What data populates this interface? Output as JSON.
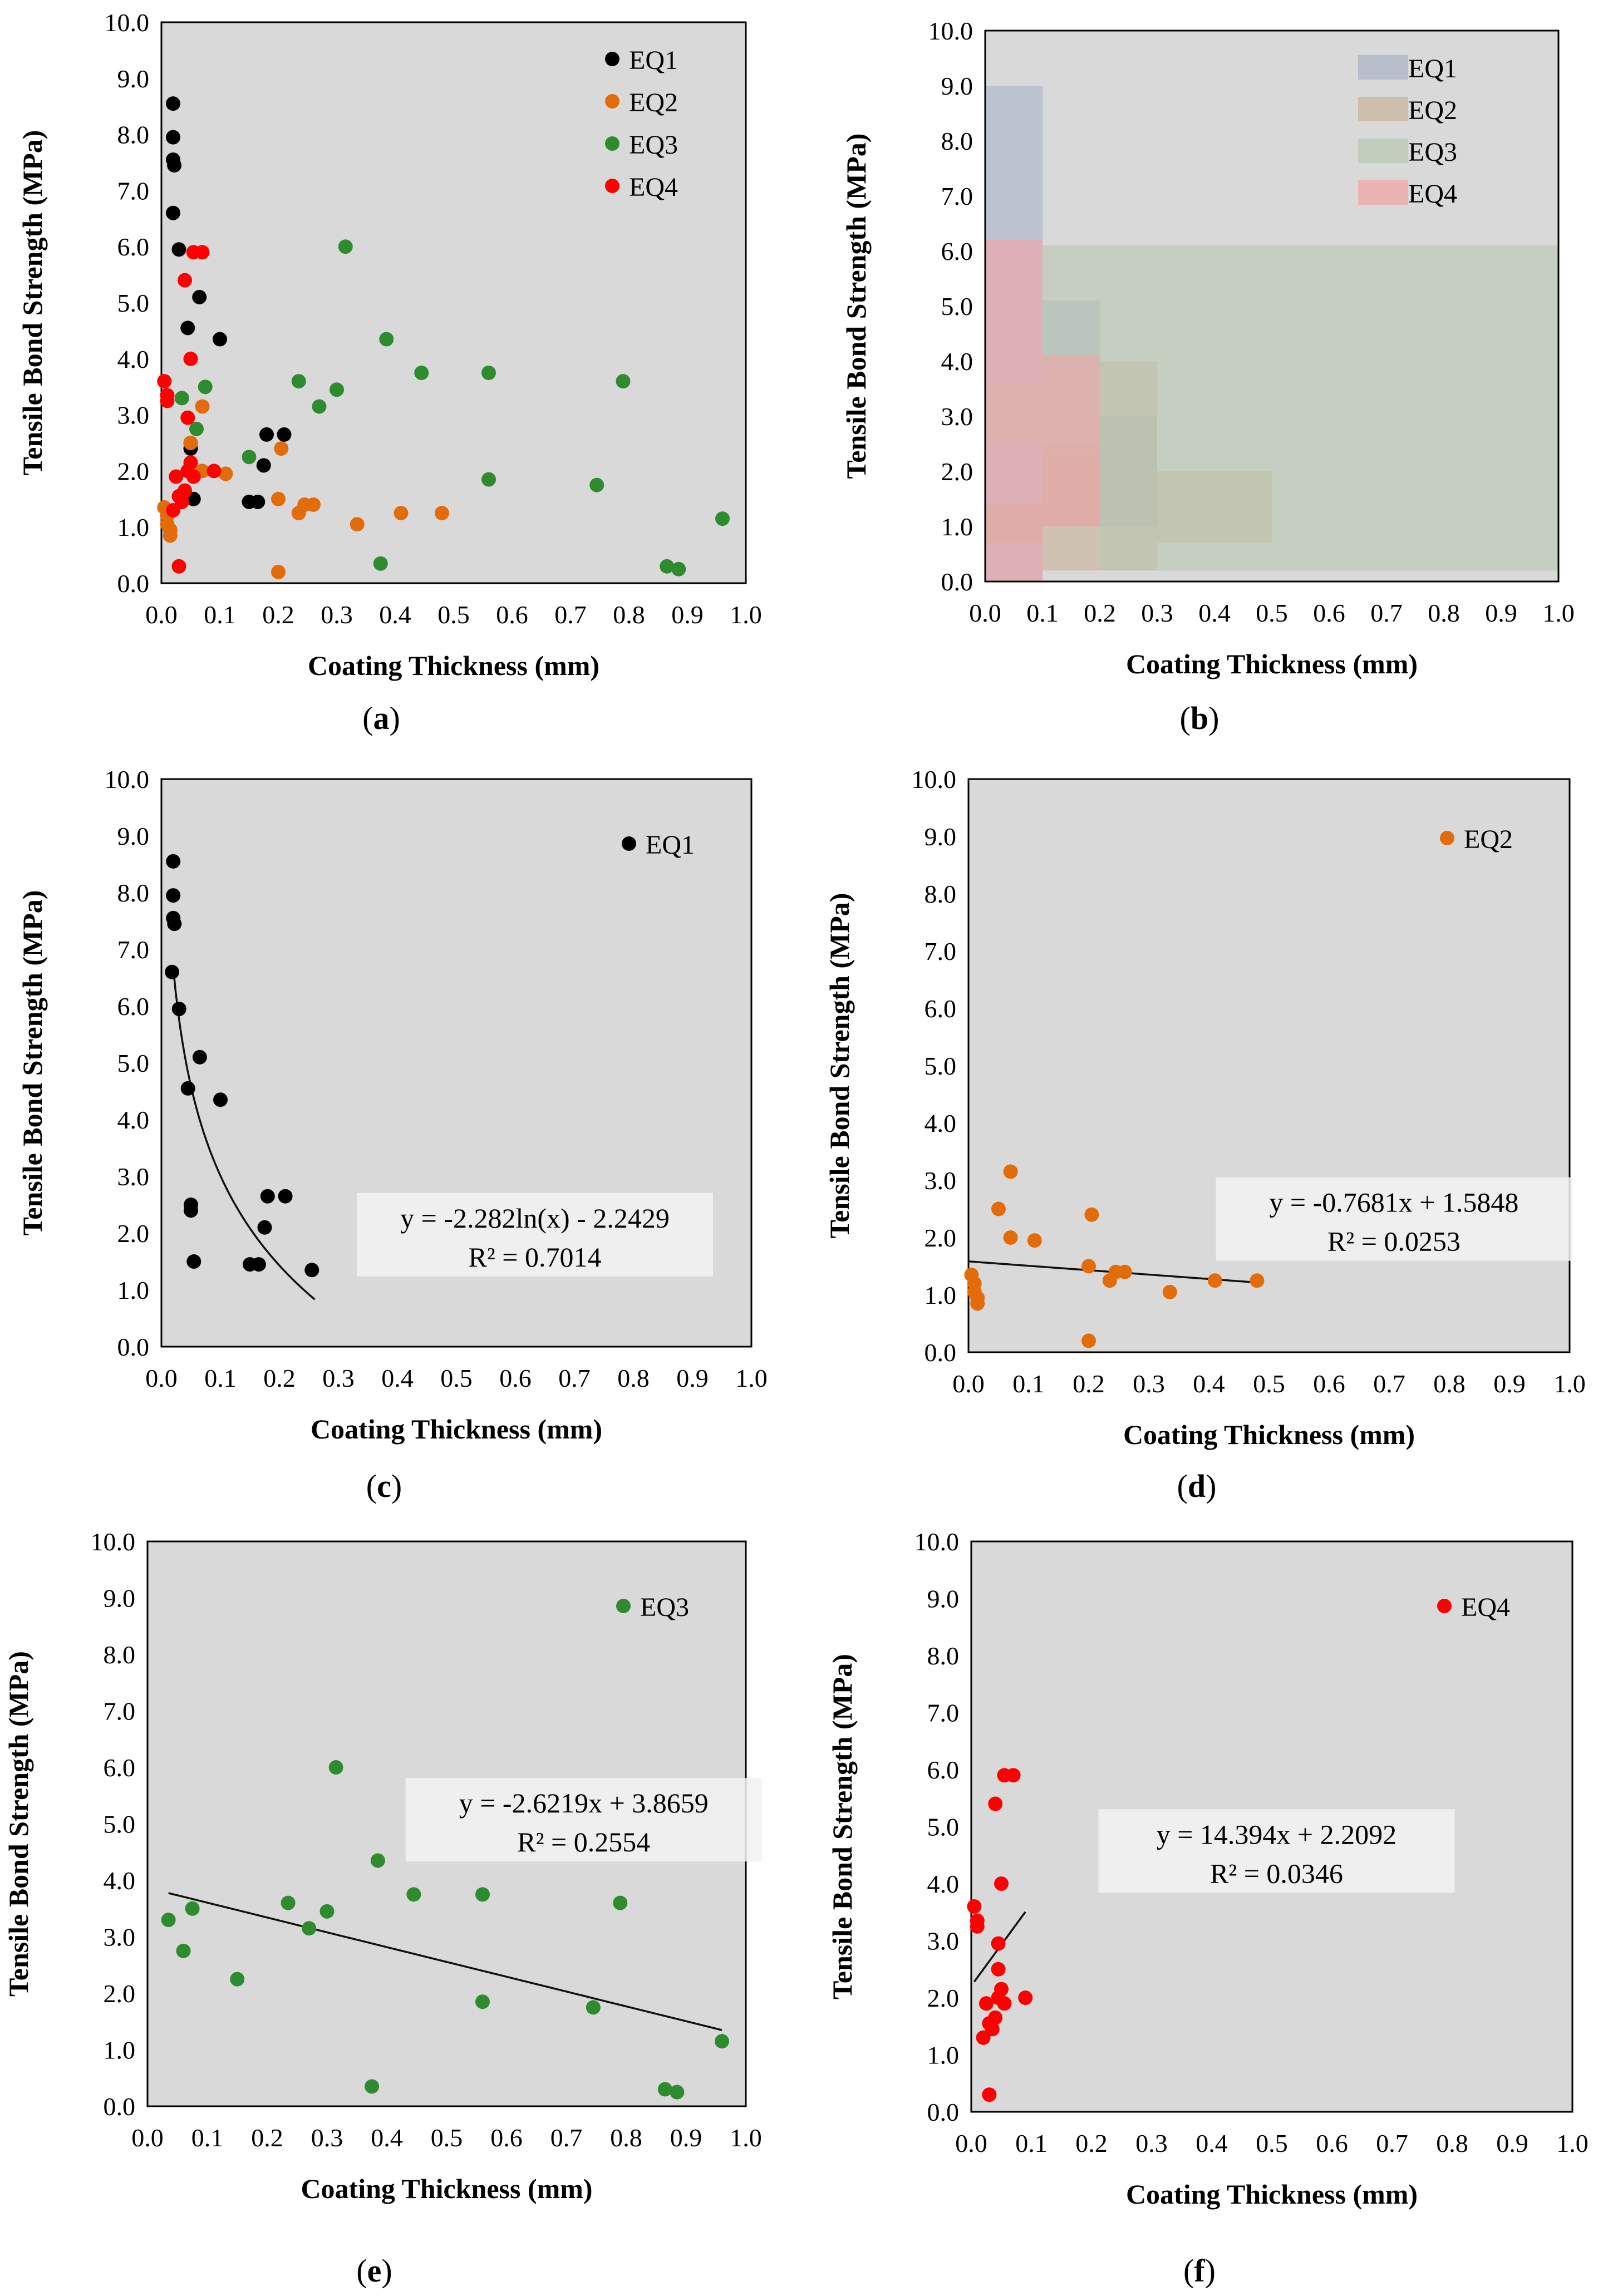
{
  "colors": {
    "EQ1": "#000000",
    "EQ2": "#e36c0a",
    "EQ3": "#2e8b2e",
    "EQ4": "#ff0000",
    "plot_bg": "#d9d9d9",
    "area_EQ1": "#a8b4c8",
    "area_EQ2": "#c9b39a",
    "area_EQ3": "#b8c6b0",
    "area_EQ4": "#f4a3a3"
  },
  "chart_data": [
    {
      "id": "a",
      "type": "scatter",
      "panel_label": "a",
      "xlabel": "Coating Thickness (mm)",
      "ylabel": "Tensile Bond Strength (MPa)",
      "xlim": [
        0,
        1
      ],
      "ylim": [
        0,
        10
      ],
      "xticks": [
        "0.0",
        "0.1",
        "0.2",
        "0.3",
        "0.4",
        "0.5",
        "0.6",
        "0.7",
        "0.8",
        "0.9",
        "1.0"
      ],
      "yticks": [
        "0.0",
        "1.0",
        "2.0",
        "3.0",
        "4.0",
        "5.0",
        "6.0",
        "7.0",
        "8.0",
        "9.0",
        "10.0"
      ],
      "legend": [
        "EQ1",
        "EQ2",
        "EQ3",
        "EQ4"
      ],
      "legend_position": "top-right",
      "series": [
        {
          "name": "EQ1",
          "color_key": "EQ1",
          "points": [
            [
              0.02,
              8.55
            ],
            [
              0.02,
              7.95
            ],
            [
              0.02,
              7.55
            ],
            [
              0.022,
              7.45
            ],
            [
              0.02,
              6.6
            ],
            [
              0.03,
              5.95
            ],
            [
              0.065,
              5.1
            ],
            [
              0.045,
              4.55
            ],
            [
              0.1,
              4.35
            ],
            [
              0.05,
              2.5
            ],
            [
              0.05,
              2.4
            ],
            [
              0.055,
              1.5
            ],
            [
              0.15,
              1.45
            ],
            [
              0.165,
              1.45
            ],
            [
              0.175,
              2.1
            ],
            [
              0.18,
              2.65
            ],
            [
              0.21,
              2.65
            ]
          ]
        },
        {
          "name": "EQ2",
          "color_key": "EQ2",
          "points": [
            [
              0.005,
              1.35
            ],
            [
              0.01,
              1.2
            ],
            [
              0.01,
              1.05
            ],
            [
              0.015,
              0.95
            ],
            [
              0.015,
              0.85
            ],
            [
              0.05,
              2.5
            ],
            [
              0.07,
              3.15
            ],
            [
              0.07,
              2.0
            ],
            [
              0.11,
              1.95
            ],
            [
              0.2,
              0.2
            ],
            [
              0.2,
              1.5
            ],
            [
              0.205,
              2.4
            ],
            [
              0.235,
              1.25
            ],
            [
              0.245,
              1.4
            ],
            [
              0.26,
              1.4
            ],
            [
              0.335,
              1.05
            ],
            [
              0.41,
              1.25
            ],
            [
              0.48,
              1.25
            ]
          ]
        },
        {
          "name": "EQ3",
          "color_key": "EQ3",
          "points": [
            [
              0.035,
              3.3
            ],
            [
              0.06,
              2.75
            ],
            [
              0.075,
              3.5
            ],
            [
              0.15,
              2.25
            ],
            [
              0.235,
              3.6
            ],
            [
              0.27,
              3.15
            ],
            [
              0.3,
              3.45
            ],
            [
              0.315,
              6.0
            ],
            [
              0.375,
              0.35
            ],
            [
              0.385,
              4.35
            ],
            [
              0.445,
              3.75
            ],
            [
              0.56,
              3.75
            ],
            [
              0.56,
              1.85
            ],
            [
              0.745,
              1.75
            ],
            [
              0.79,
              3.6
            ],
            [
              0.865,
              0.3
            ],
            [
              0.885,
              0.25
            ],
            [
              0.96,
              1.15
            ]
          ]
        },
        {
          "name": "EQ4",
          "color_key": "EQ4",
          "points": [
            [
              0.005,
              3.6
            ],
            [
              0.01,
              3.35
            ],
            [
              0.01,
              3.25
            ],
            [
              0.02,
              1.3
            ],
            [
              0.025,
              1.9
            ],
            [
              0.03,
              0.3
            ],
            [
              0.03,
              1.55
            ],
            [
              0.035,
              1.45
            ],
            [
              0.04,
              5.4
            ],
            [
              0.04,
              1.65
            ],
            [
              0.045,
              2.0
            ],
            [
              0.045,
              2.95
            ],
            [
              0.05,
              4.0
            ],
            [
              0.05,
              2.15
            ],
            [
              0.055,
              1.9
            ],
            [
              0.055,
              5.9
            ],
            [
              0.07,
              5.9
            ],
            [
              0.09,
              2.0
            ]
          ]
        }
      ]
    },
    {
      "id": "b",
      "type": "area",
      "panel_label": "b",
      "xlabel": "Coating Thickness (mm)",
      "ylabel": "Tensile Bond Strength (MPa)",
      "xlim": [
        0,
        1
      ],
      "ylim": [
        0,
        10
      ],
      "xticks": [
        "0.0",
        "0.1",
        "0.2",
        "0.3",
        "0.4",
        "0.5",
        "0.6",
        "0.7",
        "0.8",
        "0.9",
        "1.0"
      ],
      "yticks": [
        "0.0",
        "1.0",
        "2.0",
        "3.0",
        "4.0",
        "5.0",
        "6.0",
        "7.0",
        "8.0",
        "9.0",
        "10.0"
      ],
      "legend": [
        "EQ1",
        "EQ2",
        "EQ3",
        "EQ4"
      ],
      "legend_position": "top-right",
      "ranges": [
        {
          "name": "EQ1",
          "color_key": "area_EQ1",
          "bands": [
            [
              0.0,
              0.1,
              0.0,
              9.0
            ],
            [
              0.1,
              0.2,
              1.0,
              5.1
            ],
            [
              0.2,
              0.3,
              1.0,
              3.0
            ]
          ]
        },
        {
          "name": "EQ2",
          "color_key": "area_EQ2",
          "bands": [
            [
              0.0,
              0.1,
              0.7,
              1.4
            ],
            [
              0.1,
              0.2,
              0.2,
              2.5
            ],
            [
              0.2,
              0.3,
              0.2,
              4.0
            ],
            [
              0.3,
              0.5,
              0.7,
              2.0
            ]
          ]
        },
        {
          "name": "EQ3",
          "color_key": "area_EQ3",
          "bands": [
            [
              0.0,
              0.1,
              2.5,
              3.6
            ],
            [
              0.1,
              0.2,
              2.2,
              6.1
            ],
            [
              0.2,
              1.0,
              0.2,
              6.1
            ]
          ]
        },
        {
          "name": "EQ4",
          "color_key": "area_EQ4",
          "bands": [
            [
              0.0,
              0.1,
              0.0,
              6.2
            ],
            [
              0.1,
              0.2,
              1.0,
              4.1
            ]
          ]
        }
      ]
    },
    {
      "id": "c",
      "type": "scatter",
      "panel_label": "c",
      "xlabel": "Coating Thickness (mm)",
      "ylabel": "Tensile Bond Strength (MPa)",
      "xlim": [
        0,
        1
      ],
      "ylim": [
        0,
        10
      ],
      "xticks": [
        "0.0",
        "0.1",
        "0.2",
        "0.3",
        "0.4",
        "0.5",
        "0.6",
        "0.7",
        "0.8",
        "0.9",
        "1.0"
      ],
      "yticks": [
        "0.0",
        "1.0",
        "2.0",
        "3.0",
        "4.0",
        "5.0",
        "6.0",
        "7.0",
        "8.0",
        "9.0",
        "10.0"
      ],
      "legend": [
        "EQ1"
      ],
      "legend_position": "top-right",
      "equation": "y = -2.282ln(x) - 2.2429",
      "r_squared": "R² = 0.7014",
      "trend": {
        "kind": "log",
        "a": -2.282,
        "b": -2.2429,
        "x_from": 0.02,
        "x_to": 0.26
      },
      "series": [
        {
          "name": "EQ1",
          "color_key": "EQ1",
          "points": [
            [
              0.02,
              8.55
            ],
            [
              0.02,
              7.95
            ],
            [
              0.02,
              7.55
            ],
            [
              0.022,
              7.45
            ],
            [
              0.018,
              6.6
            ],
            [
              0.03,
              5.95
            ],
            [
              0.065,
              5.1
            ],
            [
              0.045,
              4.55
            ],
            [
              0.1,
              4.35
            ],
            [
              0.05,
              2.5
            ],
            [
              0.05,
              2.4
            ],
            [
              0.055,
              1.5
            ],
            [
              0.15,
              1.45
            ],
            [
              0.165,
              1.45
            ],
            [
              0.175,
              2.1
            ],
            [
              0.18,
              2.65
            ],
            [
              0.21,
              2.65
            ],
            [
              0.255,
              1.35
            ]
          ]
        }
      ]
    },
    {
      "id": "d",
      "type": "scatter",
      "panel_label": "d",
      "xlabel": "Coating Thickness (mm)",
      "ylabel": "Tensile Bond Strength (MPa)",
      "xlim": [
        0,
        1
      ],
      "ylim": [
        0,
        10
      ],
      "xticks": [
        "0.0",
        "0.1",
        "0.2",
        "0.3",
        "0.4",
        "0.5",
        "0.6",
        "0.7",
        "0.8",
        "0.9",
        "1.0"
      ],
      "yticks": [
        "0.0",
        "1.0",
        "2.0",
        "3.0",
        "4.0",
        "5.0",
        "6.0",
        "7.0",
        "8.0",
        "9.0",
        "10.0"
      ],
      "legend": [
        "EQ2"
      ],
      "legend_position": "top-right",
      "equation": "y = -0.7681x + 1.5848",
      "r_squared": "R² = 0.0253",
      "trend": {
        "kind": "linear",
        "m": -0.7681,
        "c": 1.5848,
        "x_from": 0.0,
        "x_to": 0.48
      },
      "series": [
        {
          "name": "EQ2",
          "color_key": "EQ2",
          "points": [
            [
              0.005,
              1.35
            ],
            [
              0.01,
              1.2
            ],
            [
              0.01,
              1.05
            ],
            [
              0.015,
              0.95
            ],
            [
              0.015,
              0.85
            ],
            [
              0.05,
              2.5
            ],
            [
              0.07,
              3.15
            ],
            [
              0.07,
              2.0
            ],
            [
              0.11,
              1.95
            ],
            [
              0.2,
              0.2
            ],
            [
              0.2,
              1.5
            ],
            [
              0.205,
              2.4
            ],
            [
              0.235,
              1.25
            ],
            [
              0.245,
              1.4
            ],
            [
              0.26,
              1.4
            ],
            [
              0.335,
              1.05
            ],
            [
              0.41,
              1.25
            ],
            [
              0.48,
              1.25
            ]
          ]
        }
      ]
    },
    {
      "id": "e",
      "type": "scatter",
      "panel_label": "e",
      "xlabel": "Coating Thickness (mm)",
      "ylabel": "Tensile Bond Strength (MPa)",
      "xlim": [
        0,
        1
      ],
      "ylim": [
        0,
        10
      ],
      "xticks": [
        "0.0",
        "0.1",
        "0.2",
        "0.3",
        "0.4",
        "0.5",
        "0.6",
        "0.7",
        "0.8",
        "0.9",
        "1.0"
      ],
      "yticks": [
        "0.0",
        "1.0",
        "2.0",
        "3.0",
        "4.0",
        "5.0",
        "6.0",
        "7.0",
        "8.0",
        "9.0",
        "10.0"
      ],
      "legend": [
        "EQ3"
      ],
      "legend_position": "top-right",
      "equation": "y = -2.6219x + 3.8659",
      "r_squared": "R² = 0.2554",
      "trend": {
        "kind": "linear",
        "m": -2.6219,
        "c": 3.8659,
        "x_from": 0.035,
        "x_to": 0.96
      },
      "series": [
        {
          "name": "EQ3",
          "color_key": "EQ3",
          "points": [
            [
              0.035,
              3.3
            ],
            [
              0.06,
              2.75
            ],
            [
              0.075,
              3.5
            ],
            [
              0.15,
              2.25
            ],
            [
              0.235,
              3.6
            ],
            [
              0.27,
              3.15
            ],
            [
              0.3,
              3.45
            ],
            [
              0.315,
              6.0
            ],
            [
              0.375,
              0.35
            ],
            [
              0.385,
              4.35
            ],
            [
              0.445,
              3.75
            ],
            [
              0.56,
              3.75
            ],
            [
              0.56,
              1.85
            ],
            [
              0.745,
              1.75
            ],
            [
              0.79,
              3.6
            ],
            [
              0.865,
              0.3
            ],
            [
              0.885,
              0.25
            ],
            [
              0.96,
              1.15
            ]
          ]
        }
      ]
    },
    {
      "id": "f",
      "type": "scatter",
      "panel_label": "f",
      "xlabel": "Coating Thickness (mm)",
      "ylabel": "Tensile Bond Strength (MPa)",
      "xlim": [
        0,
        1
      ],
      "ylim": [
        0,
        10
      ],
      "xticks": [
        "0.0",
        "0.1",
        "0.2",
        "0.3",
        "0.4",
        "0.5",
        "0.6",
        "0.7",
        "0.8",
        "0.9",
        "1.0"
      ],
      "yticks": [
        "0.0",
        "1.0",
        "2.0",
        "3.0",
        "4.0",
        "5.0",
        "6.0",
        "7.0",
        "8.0",
        "9.0",
        "10.0"
      ],
      "legend": [
        "EQ4"
      ],
      "legend_position": "top-right",
      "equation": "y = 14.394x + 2.2092",
      "r_squared": "R² = 0.0346",
      "trend": {
        "kind": "linear",
        "m": 14.394,
        "c": 2.2092,
        "x_from": 0.005,
        "x_to": 0.09
      },
      "series": [
        {
          "name": "EQ4",
          "color_key": "EQ4",
          "points": [
            [
              0.005,
              3.6
            ],
            [
              0.01,
              3.35
            ],
            [
              0.01,
              3.25
            ],
            [
              0.02,
              1.3
            ],
            [
              0.025,
              1.9
            ],
            [
              0.03,
              0.3
            ],
            [
              0.03,
              1.55
            ],
            [
              0.035,
              1.45
            ],
            [
              0.04,
              5.4
            ],
            [
              0.04,
              1.65
            ],
            [
              0.045,
              2.0
            ],
            [
              0.045,
              2.5
            ],
            [
              0.045,
              2.95
            ],
            [
              0.05,
              4.0
            ],
            [
              0.05,
              2.15
            ],
            [
              0.055,
              1.9
            ],
            [
              0.055,
              5.9
            ],
            [
              0.07,
              5.9
            ],
            [
              0.09,
              2.0
            ]
          ]
        }
      ]
    }
  ]
}
